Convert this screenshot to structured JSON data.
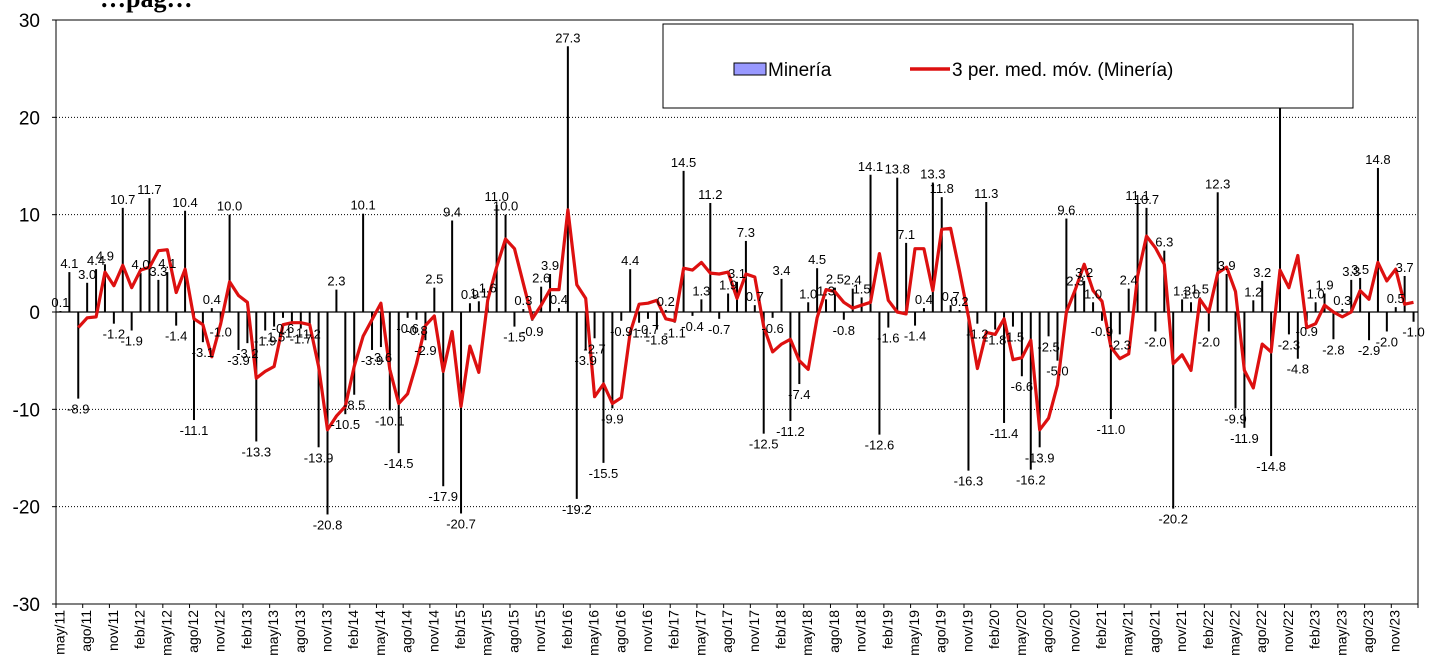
{
  "title_fragment": "…pag…",
  "chart_data": {
    "type": "bar",
    "ylim": [
      -30,
      30
    ],
    "yticks": [
      -30,
      -20,
      -10,
      0,
      10,
      20,
      30
    ],
    "xtick_labels": [
      "may/11",
      "ago/11",
      "nov/11",
      "feb/12",
      "may/12",
      "ago/12",
      "nov/12",
      "feb/13",
      "may/13",
      "ago/13",
      "nov/13",
      "feb/14",
      "may/14",
      "ago/14",
      "nov/14",
      "feb/15",
      "may/15",
      "ago/15",
      "nov/15",
      "feb/16",
      "may/16",
      "ago/16",
      "nov/16",
      "feb/17",
      "may/17",
      "ago/17",
      "nov/17",
      "feb/18",
      "may/18",
      "ago/18",
      "nov/18",
      "feb/19",
      "may/19",
      "ago/19",
      "nov/19",
      "feb/20",
      "may/20",
      "ago/20",
      "nov/20",
      "feb/21",
      "may/21",
      "ago/21",
      "nov/21",
      "feb/22",
      "may/22",
      "ago/22",
      "nov/22",
      "feb/23",
      "may/23",
      "ago/23",
      "nov/23"
    ],
    "grid": true,
    "legend_position": "top-right",
    "series": [
      {
        "name": "Minería",
        "kind": "bar",
        "color": "#9999ff",
        "bar_color": "#000000",
        "values": [
          0.1,
          4.1,
          -8.9,
          3.0,
          4.4,
          4.9,
          -1.2,
          10.7,
          -1.9,
          4.0,
          11.7,
          3.3,
          4.1,
          -1.4,
          10.4,
          -11.1,
          -3.1,
          0.4,
          -1.0,
          10.0,
          -3.9,
          -3.2,
          -13.3,
          -1.9,
          -1.5,
          -0.6,
          -1.1,
          -1.7,
          -1.2,
          -13.9,
          -20.8,
          2.3,
          -10.5,
          -8.5,
          10.1,
          -3.9,
          -3.6,
          -10.1,
          -14.5,
          -0.6,
          -0.8,
          -2.9,
          2.5,
          -17.9,
          9.4,
          -20.7,
          0.9,
          1.1,
          1.6,
          11.0,
          10.0,
          -1.5,
          0.3,
          -0.9,
          2.6,
          3.9,
          0.4,
          27.3,
          -19.2,
          -3.9,
          -2.7,
          -15.5,
          -9.9,
          -0.9,
          4.4,
          -1.1,
          -0.7,
          -1.8,
          0.2,
          -1.1,
          14.5,
          -0.4,
          1.3,
          11.2,
          -0.7,
          1.9,
          3.1,
          7.3,
          0.7,
          -12.5,
          -0.6,
          3.4,
          -11.2,
          -7.4,
          1.0,
          4.5,
          1.3,
          2.5,
          -0.8,
          2.4,
          1.5,
          14.1,
          -12.6,
          -1.6,
          13.8,
          7.1,
          -1.4,
          0.4,
          13.3,
          11.8,
          0.7,
          0.2,
          -16.3,
          -1.2,
          11.3,
          -1.8,
          -11.4,
          -1.5,
          -6.6,
          -16.2,
          -13.9,
          -2.5,
          -5.0,
          9.6,
          2.3,
          3.2,
          1.0,
          -0.9,
          -11.0,
          -2.3,
          2.4,
          11.1,
          10.7,
          -2.0,
          6.3,
          -20.2,
          1.3,
          1.0,
          1.5,
          -2.0,
          12.3,
          3.9,
          -9.9,
          -11.9,
          1.2,
          3.2,
          -14.8,
          24.4,
          -2.3,
          -4.8,
          -0.9,
          1.0,
          1.9,
          -2.8,
          0.3,
          3.3,
          3.5,
          -2.9,
          14.8,
          -2.0,
          0.5,
          3.7,
          -1.0
        ]
      },
      {
        "name": "3 per. med. móv. (Minería)",
        "kind": "line",
        "color": "#dd1010",
        "values": [
          null,
          null,
          -1.6,
          -0.6,
          -0.5,
          4.1,
          2.7,
          4.8,
          2.5,
          4.3,
          4.6,
          6.3,
          6.4,
          2.0,
          4.4,
          -0.7,
          -1.3,
          -4.6,
          -1.2,
          3.1,
          1.7,
          1.0,
          -6.8,
          -6.1,
          -5.6,
          -1.3,
          -1.1,
          -1.1,
          -1.3,
          -5.6,
          -12.1,
          -10.7,
          -9.7,
          -5.6,
          -2.5,
          -0.8,
          0.9,
          -5.9,
          -9.4,
          -8.4,
          -5.3,
          -1.4,
          -0.4,
          -6.1,
          -2.0,
          -9.7,
          -3.5,
          -6.2,
          1.2,
          4.6,
          7.5,
          6.5,
          2.9,
          -0.7,
          0.7,
          2.3,
          2.3,
          10.5,
          2.8,
          1.4,
          -8.7,
          -7.4,
          -9.4,
          -8.8,
          -2.1,
          0.8,
          0.9,
          1.2,
          -0.7,
          -0.9,
          4.5,
          4.3,
          5.1,
          4.0,
          3.9,
          4.1,
          1.4,
          3.9,
          3.6,
          -1.5,
          -4.1,
          -3.3,
          -2.8,
          -5.0,
          -5.9,
          -0.6,
          2.3,
          2.1,
          1.0,
          0.4,
          0.7,
          1.0,
          6.0,
          1.2,
          0.0,
          -0.2,
          6.5,
          6.5,
          2.2,
          8.5,
          8.6,
          4.2,
          -0.5,
          -5.8,
          -2.1,
          -2.3,
          -0.7,
          -4.9,
          -4.7,
          -2.9,
          -12.1,
          -10.9,
          -7.5,
          0.0,
          2.3,
          4.9,
          2.2,
          1.1,
          -3.6,
          -4.8,
          -4.3,
          3.7,
          7.8,
          6.6,
          4.9,
          -5.3,
          -4.4,
          -6.0,
          1.3,
          0.0,
          4.0,
          4.6,
          2.1,
          -6.0,
          -7.8,
          -3.3,
          -4.1,
          4.3,
          2.5,
          5.8,
          -1.6,
          -1.2,
          0.7,
          0.0,
          -0.5,
          0.0,
          2.2,
          1.3,
          5.1,
          3.2,
          4.4,
          0.8,
          1.0
        ]
      }
    ],
    "bar_labels": [
      {
        "i": 0,
        "t": "0.1"
      },
      {
        "i": 1,
        "t": "4.1"
      },
      {
        "i": 2,
        "t": "-8.9"
      },
      {
        "i": 3,
        "t": "3.0"
      },
      {
        "i": 4,
        "t": "4.4"
      },
      {
        "i": 5,
        "t": "4.9"
      },
      {
        "i": 6,
        "t": "-1.2"
      },
      {
        "i": 7,
        "t": "10.7"
      },
      {
        "i": 8,
        "t": "-1.9"
      },
      {
        "i": 9,
        "t": "4.0"
      },
      {
        "i": 10,
        "t": "11.7"
      },
      {
        "i": 11,
        "t": "3.3"
      },
      {
        "i": 12,
        "t": "4.1"
      },
      {
        "i": 13,
        "t": "-1.4"
      },
      {
        "i": 14,
        "t": "10.4"
      },
      {
        "i": 15,
        "t": "-11.1"
      },
      {
        "i": 16,
        "t": "-3.1"
      },
      {
        "i": 17,
        "t": "0.4"
      },
      {
        "i": 18,
        "t": "-1.0"
      },
      {
        "i": 19,
        "t": "10.0"
      },
      {
        "i": 20,
        "t": "-3.9"
      },
      {
        "i": 21,
        "t": "-3.2"
      },
      {
        "i": 22,
        "t": "-13.3"
      },
      {
        "i": 23,
        "t": "-1.9"
      },
      {
        "i": 24,
        "t": "-1.5"
      },
      {
        "i": 25,
        "t": "-0.6"
      },
      {
        "i": 26,
        "t": "-1.1"
      },
      {
        "i": 27,
        "t": "-1.7"
      },
      {
        "i": 28,
        "t": "-1.2"
      },
      {
        "i": 29,
        "t": "-13.9"
      },
      {
        "i": 30,
        "t": "-20.8"
      },
      {
        "i": 31,
        "t": "2.3"
      },
      {
        "i": 32,
        "t": "-10.5"
      },
      {
        "i": 33,
        "t": "-8.5"
      },
      {
        "i": 34,
        "t": "10.1"
      },
      {
        "i": 35,
        "t": "-3.9"
      },
      {
        "i": 36,
        "t": "-3.6"
      },
      {
        "i": 37,
        "t": "-10.1"
      },
      {
        "i": 38,
        "t": "-14.5"
      },
      {
        "i": 39,
        "t": "-0.6"
      },
      {
        "i": 40,
        "t": "-0.8"
      },
      {
        "i": 41,
        "t": "-2.9"
      },
      {
        "i": 42,
        "t": "2.5"
      },
      {
        "i": 43,
        "t": "-17.9"
      },
      {
        "i": 44,
        "t": "9.4"
      },
      {
        "i": 45,
        "t": "-20.7"
      },
      {
        "i": 46,
        "t": "0.9"
      },
      {
        "i": 47,
        "t": "1.1"
      },
      {
        "i": 48,
        "t": "1.6"
      },
      {
        "i": 49,
        "t": "11.0"
      },
      {
        "i": 50,
        "t": "10.0"
      },
      {
        "i": 51,
        "t": "-1.5"
      },
      {
        "i": 52,
        "t": "0.3"
      },
      {
        "i": 53,
        "t": "-0.9"
      },
      {
        "i": 54,
        "t": "2.6"
      },
      {
        "i": 55,
        "t": "3.9"
      },
      {
        "i": 56,
        "t": "0.4"
      },
      {
        "i": 57,
        "t": "27.3"
      },
      {
        "i": 58,
        "t": "-19.2"
      },
      {
        "i": 59,
        "t": "-3.9"
      },
      {
        "i": 60,
        "t": "-2.7"
      },
      {
        "i": 61,
        "t": "-15.5"
      },
      {
        "i": 62,
        "t": "-9.9"
      },
      {
        "i": 63,
        "t": "-0.9"
      },
      {
        "i": 64,
        "t": "4.4"
      },
      {
        "i": 65,
        "t": "-1.1"
      },
      {
        "i": 66,
        "t": "-0.7"
      },
      {
        "i": 67,
        "t": "-1.8"
      },
      {
        "i": 68,
        "t": "0.2"
      },
      {
        "i": 69,
        "t": "-1.1"
      },
      {
        "i": 70,
        "t": "14.5"
      },
      {
        "i": 71,
        "t": "-0.4"
      },
      {
        "i": 72,
        "t": "1.3"
      },
      {
        "i": 73,
        "t": "11.2"
      },
      {
        "i": 74,
        "t": "-0.7"
      },
      {
        "i": 75,
        "t": "1.9"
      },
      {
        "i": 76,
        "t": "3.1"
      },
      {
        "i": 77,
        "t": "7.3"
      },
      {
        "i": 78,
        "t": "0.7"
      },
      {
        "i": 79,
        "t": "-12.5"
      },
      {
        "i": 80,
        "t": "-0.6"
      },
      {
        "i": 81,
        "t": "3.4"
      },
      {
        "i": 82,
        "t": "-11.2"
      },
      {
        "i": 83,
        "t": "-7.4"
      },
      {
        "i": 84,
        "t": "1.0"
      },
      {
        "i": 85,
        "t": "4.5"
      },
      {
        "i": 86,
        "t": "1.3"
      },
      {
        "i": 87,
        "t": "2.5"
      },
      {
        "i": 88,
        "t": "-0.8"
      },
      {
        "i": 89,
        "t": "2.4"
      },
      {
        "i": 90,
        "t": "1.5"
      },
      {
        "i": 91,
        "t": "14.1"
      },
      {
        "i": 92,
        "t": "-12.6"
      },
      {
        "i": 93,
        "t": "-1.6"
      },
      {
        "i": 94,
        "t": "13.8"
      },
      {
        "i": 95,
        "t": "7.1"
      },
      {
        "i": 96,
        "t": "-1.4"
      },
      {
        "i": 97,
        "t": "0.4"
      },
      {
        "i": 98,
        "t": "13.3"
      },
      {
        "i": 99,
        "t": "11.8"
      },
      {
        "i": 100,
        "t": "0.7"
      },
      {
        "i": 101,
        "t": "0.2"
      },
      {
        "i": 102,
        "t": "-16.3"
      },
      {
        "i": 103,
        "t": "-1.2"
      },
      {
        "i": 104,
        "t": "11.3"
      },
      {
        "i": 105,
        "t": "-1.8"
      },
      {
        "i": 106,
        "t": "-11.4"
      },
      {
        "i": 107,
        "t": "-1.5"
      },
      {
        "i": 108,
        "t": "-6.6"
      },
      {
        "i": 109,
        "t": "-16.2"
      },
      {
        "i": 110,
        "t": "-13.9"
      },
      {
        "i": 111,
        "t": "-2.5"
      },
      {
        "i": 112,
        "t": "-5.0"
      },
      {
        "i": 113,
        "t": "9.6"
      },
      {
        "i": 114,
        "t": "2.3"
      },
      {
        "i": 115,
        "t": "3.2"
      },
      {
        "i": 116,
        "t": "1.0"
      },
      {
        "i": 117,
        "t": "-0.9"
      },
      {
        "i": 118,
        "t": "-11.0"
      },
      {
        "i": 119,
        "t": "-2.3"
      },
      {
        "i": 120,
        "t": "2.4"
      },
      {
        "i": 121,
        "t": "11.1"
      },
      {
        "i": 122,
        "t": "10.7"
      },
      {
        "i": 123,
        "t": "-2.0"
      },
      {
        "i": 124,
        "t": "6.3"
      },
      {
        "i": 125,
        "t": "-20.2"
      },
      {
        "i": 126,
        "t": "1.3"
      },
      {
        "i": 127,
        "t": "1.0"
      },
      {
        "i": 128,
        "t": "1.5"
      },
      {
        "i": 129,
        "t": "-2.0"
      },
      {
        "i": 130,
        "t": "12.3"
      },
      {
        "i": 131,
        "t": "3.9"
      },
      {
        "i": 132,
        "t": "-9.9"
      },
      {
        "i": 133,
        "t": "-11.9"
      },
      {
        "i": 134,
        "t": "1.2"
      },
      {
        "i": 135,
        "t": "3.2"
      },
      {
        "i": 136,
        "t": "-14.8"
      },
      {
        "i": 137,
        "t": "24.4"
      },
      {
        "i": 138,
        "t": "-2.3"
      },
      {
        "i": 139,
        "t": "-4.8"
      },
      {
        "i": 140,
        "t": "-0.9"
      },
      {
        "i": 141,
        "t": "1.0"
      },
      {
        "i": 142,
        "t": "1.9"
      },
      {
        "i": 143,
        "t": "-2.8"
      },
      {
        "i": 144,
        "t": "0.3"
      },
      {
        "i": 145,
        "t": "3.3"
      },
      {
        "i": 146,
        "t": "3.5"
      },
      {
        "i": 147,
        "t": "-2.9"
      },
      {
        "i": 148,
        "t": "14.8"
      },
      {
        "i": 149,
        "t": "-2.0"
      },
      {
        "i": 150,
        "t": "0.5"
      },
      {
        "i": 151,
        "t": "3.7"
      },
      {
        "i": 152,
        "t": "-1.0"
      }
    ]
  }
}
